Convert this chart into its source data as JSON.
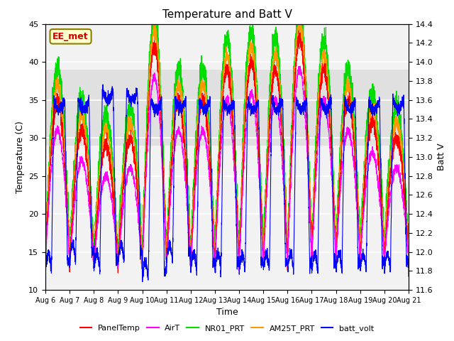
{
  "title": "Temperature and Batt V",
  "xlabel": "Time",
  "ylabel_left": "Temperature (C)",
  "ylabel_right": "Batt V",
  "ylim_left": [
    10,
    45
  ],
  "ylim_right": [
    11.6,
    14.4
  ],
  "x_tick_labels": [
    "Aug 6",
    "Aug 7",
    "Aug 8",
    "Aug 9",
    "Aug 10",
    "Aug 11",
    "Aug 12",
    "Aug 13",
    "Aug 14",
    "Aug 15",
    "Aug 16",
    "Aug 17",
    "Aug 18",
    "Aug 19",
    "Aug 20",
    "Aug 21"
  ],
  "shading_ylim": [
    29,
    39
  ],
  "station_label": "EE_met",
  "station_box_color": "#cc0000",
  "station_box_facecolor": "#ffffcc",
  "background_color": "#ffffff",
  "plot_bg_color": "#f2f2f2",
  "grid_color": "#ffffff",
  "colors": {
    "PanelTemp": "#ff0000",
    "AirT": "#ff00ff",
    "NR01_PRT": "#00dd00",
    "AM25T_PRT": "#ff9900",
    "batt_volt": "#0000ff"
  },
  "legend_labels": [
    "PanelTemp",
    "AirT",
    "NR01_PRT",
    "AM25T_PRT",
    "batt_volt"
  ],
  "n_days": 15,
  "pts_per_day": 288,
  "temp_base": 16,
  "temp_amplitude": 14,
  "batt_base": 13.0,
  "batt_amplitude": 1.2
}
